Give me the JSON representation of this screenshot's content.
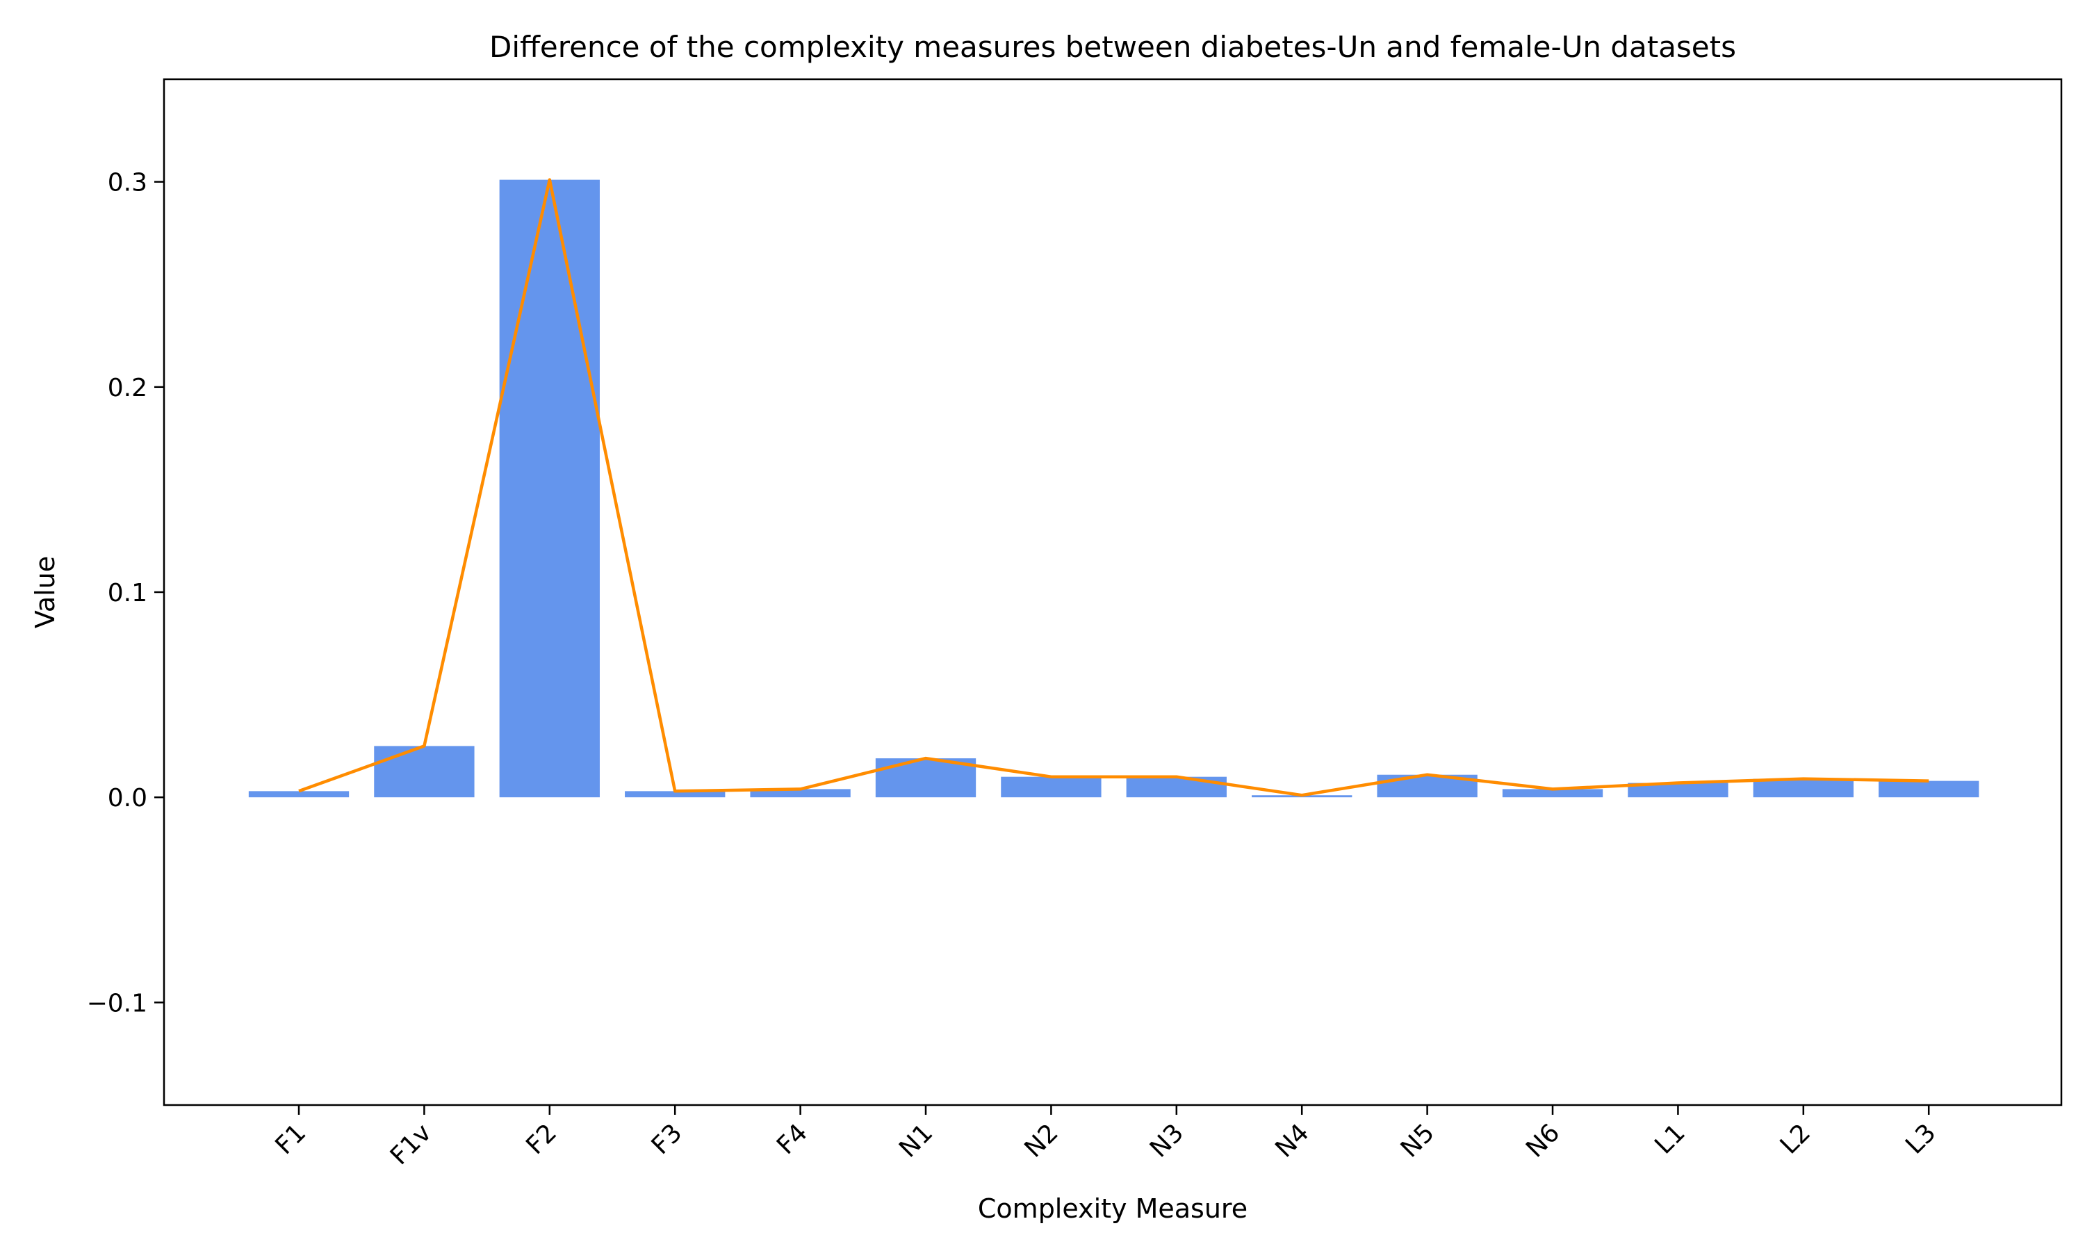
{
  "chart_data": {
    "type": "bar",
    "title": "Difference of the complexity measures between diabetes-Un and female-Un datasets",
    "xlabel": "Complexity Measure",
    "ylabel": "Value",
    "ylim": [
      -0.15,
      0.35
    ],
    "yticks": [
      -0.1,
      0.0,
      0.1,
      0.2,
      0.3
    ],
    "ytick_labels": [
      "−0.1",
      "0.0",
      "0.1",
      "0.2",
      "0.3"
    ],
    "categories": [
      "F1",
      "F1v",
      "F2",
      "F3",
      "F4",
      "N1",
      "N2",
      "N3",
      "N4",
      "N5",
      "N6",
      "L1",
      "L2",
      "L3"
    ],
    "series": [
      {
        "type": "bar",
        "values": [
          0.003,
          0.025,
          0.301,
          0.003,
          0.004,
          0.019,
          0.01,
          0.01,
          0.001,
          0.011,
          0.004,
          0.007,
          0.009,
          0.008
        ],
        "color": "#6495ED"
      },
      {
        "type": "line",
        "values": [
          0.003,
          0.025,
          0.301,
          0.003,
          0.004,
          0.019,
          0.01,
          0.01,
          0.001,
          0.011,
          0.004,
          0.007,
          0.009,
          0.008
        ],
        "color": "#FF8C00"
      }
    ],
    "grid": false,
    "legend": "none"
  }
}
